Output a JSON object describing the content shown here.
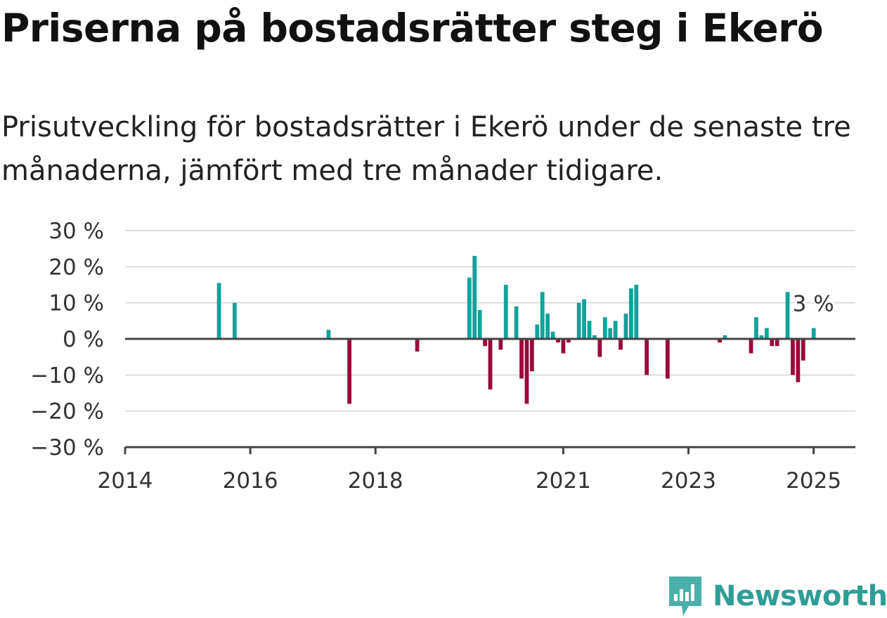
{
  "title": "Priserna på bostadsrätter steg i Ekerö",
  "subtitle": "Prisutveckling för bostadsrätter i Ekerö under de senaste tre månaderna, jämfört med tre månader tidigare.",
  "brand": {
    "name": "Newsworthy",
    "icon": "bar-chart-speech-icon",
    "color": "#2f9d97"
  },
  "colors": {
    "positive": "#12a29a",
    "negative": "#970b3b",
    "grid": "#dddddd",
    "axis": "#444444"
  },
  "chart_data": {
    "type": "bar",
    "title": "Priserna på bostadsrätter steg i Ekerö",
    "xlabel": "",
    "ylabel": "",
    "ylim": [
      -30,
      30
    ],
    "yticks": [
      30,
      20,
      10,
      0,
      -10,
      -20,
      -30
    ],
    "ytick_labels": [
      "30 %",
      "20 %",
      "10 %",
      "0 %",
      "−10 %",
      "−20 %",
      "−30 %"
    ],
    "xlim": [
      "2014-01",
      "2025-09"
    ],
    "xticks": [
      "2014",
      "2016",
      "2018",
      "2021",
      "2023",
      "2025"
    ],
    "grid": true,
    "annotation": {
      "date": "2025-01",
      "value": 3,
      "label": "3 %"
    },
    "dates": [
      "2015-07",
      "2015-10",
      "2017-04",
      "2017-08",
      "2018-09",
      "2019-07",
      "2019-08",
      "2019-09",
      "2019-10",
      "2019-11",
      "2020-01",
      "2020-02",
      "2020-04",
      "2020-05",
      "2020-06",
      "2020-07",
      "2020-08",
      "2020-09",
      "2020-10",
      "2020-11",
      "2020-12",
      "2021-01",
      "2021-02",
      "2021-04",
      "2021-05",
      "2021-06",
      "2021-07",
      "2021-08",
      "2021-09",
      "2021-10",
      "2021-11",
      "2021-12",
      "2022-01",
      "2022-02",
      "2022-03",
      "2022-05",
      "2022-09",
      "2023-07",
      "2023-08",
      "2024-01",
      "2024-02",
      "2024-03",
      "2024-04",
      "2024-05",
      "2024-06",
      "2024-08",
      "2024-09",
      "2024-10",
      "2024-11",
      "2025-01"
    ],
    "values": [
      15.5,
      10,
      2.5,
      -18,
      -3.5,
      17,
      23,
      8,
      -2,
      -14,
      -3,
      15,
      9,
      -11,
      -18,
      -9,
      4,
      13,
      7,
      2,
      -1,
      -4,
      -1,
      10,
      11,
      5,
      1,
      -5,
      6,
      3,
      5,
      -3,
      7,
      14,
      15,
      -10,
      -11,
      -1,
      1,
      -4,
      6,
      1,
      3,
      -2,
      -2,
      13,
      -10,
      -12,
      -6,
      3
    ]
  }
}
